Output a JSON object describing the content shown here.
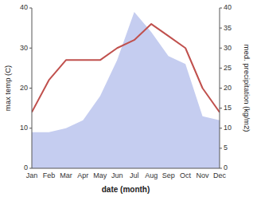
{
  "chart_data": {
    "type": "line",
    "xlabel": "date (month)",
    "ylabel": "max temp (C)",
    "y2label": "med. precipitation (kg/m2)",
    "categories": [
      "Jan",
      "Feb",
      "Mar",
      "Apr",
      "May",
      "Jun",
      "Jul",
      "Aug",
      "Sep",
      "Oct",
      "Nov",
      "Dec"
    ],
    "series": [
      {
        "type": "area",
        "axis": "y2",
        "color": "#c5cdf0",
        "values": [
          9,
          9,
          10,
          12,
          18,
          27,
          39,
          34,
          28,
          26,
          13,
          12
        ]
      },
      {
        "type": "line",
        "color": "#c0504d",
        "values": [
          14,
          22,
          27,
          27,
          27,
          30,
          32,
          36,
          33,
          30,
          20,
          14
        ]
      }
    ],
    "ylim": [
      0,
      40
    ],
    "yticks": [
      0,
      10,
      20,
      30,
      40
    ],
    "y2lim": [
      0,
      40
    ],
    "y2ticks": [
      0,
      5,
      10,
      15,
      20,
      25,
      30,
      35,
      40
    ],
    "grid": false
  }
}
